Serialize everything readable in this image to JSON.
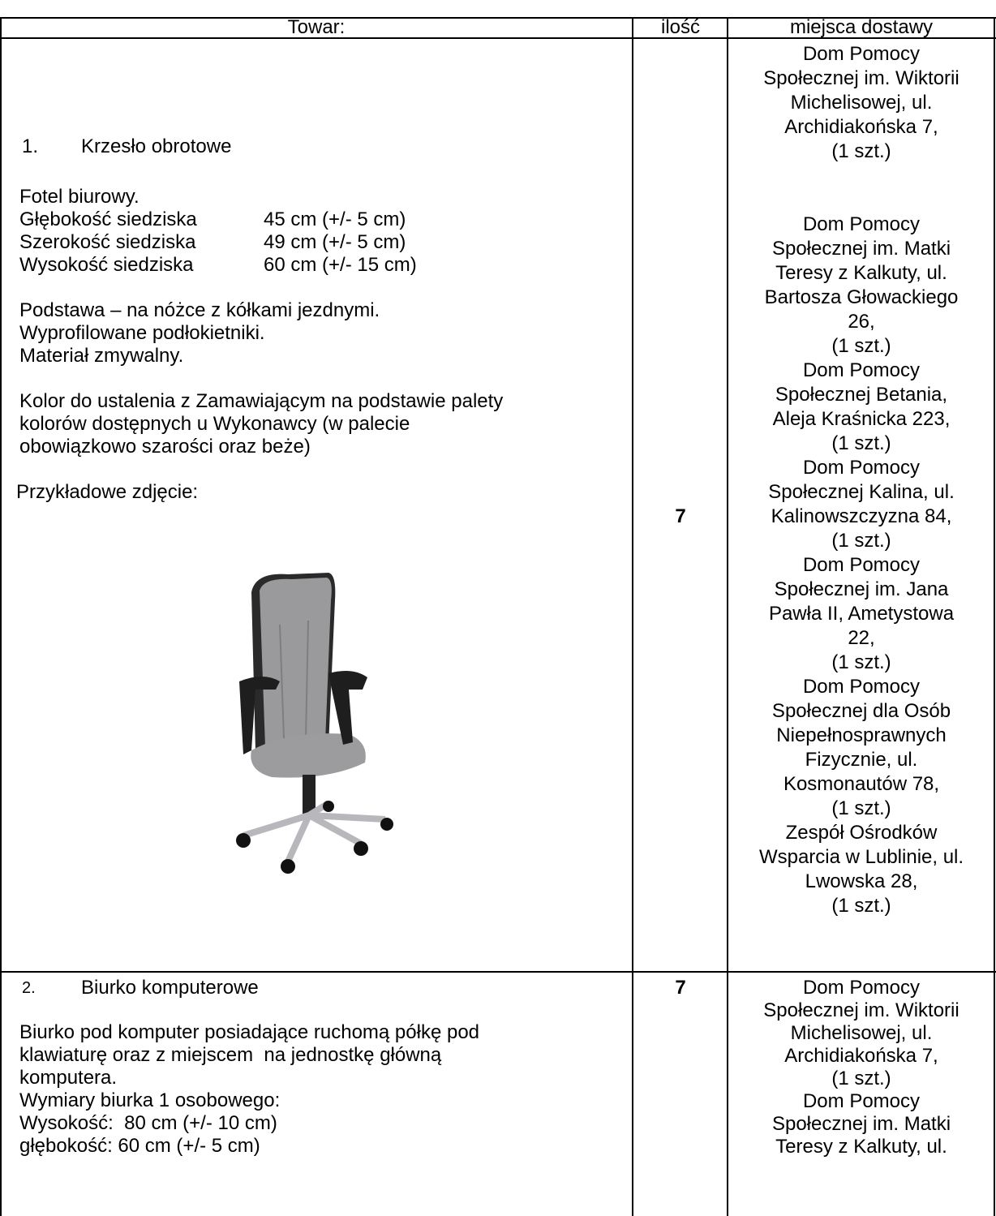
{
  "header": {
    "item": "Towar:",
    "quantity": "ilość",
    "delivery": "miejsca dostawy"
  },
  "rows": [
    {
      "number": "1.",
      "name": "Krzesło obrotowe",
      "intro": "Fotel biurowy.",
      "specs": [
        [
          "Głębokość siedziska",
          "45 cm (+/- 5 cm)"
        ],
        [
          "Szerokość siedziska",
          "49 cm (+/- 5 cm)"
        ],
        [
          "Wysokość siedziska",
          "60 cm (+/- 15 cm)"
        ]
      ],
      "features": [
        "Podstawa – na nóżce z kółkami jezdnymi.",
        "Wyprofilowane podłokietniki.",
        "Materiał zmywalny."
      ],
      "color_note": [
        "Kolor do ustalenia z Zamawiającym na podstawie palety",
        "kolorów dostępnych u Wykonawcy (w palecie",
        "obowiązkowo szarości oraz beże)"
      ],
      "photo_caption": "Przykładowe zdjęcie:",
      "quantity": 7,
      "delivery": [
        [
          "Dom Pomocy",
          "Społecznej im. Wiktorii",
          "Michelisowej, ul.",
          "Archidiakońska 7,",
          "(1 szt.)"
        ],
        [
          "Dom Pomocy",
          "Społecznej im. Matki",
          "Teresy z Kalkuty, ul.",
          "Bartosza Głowackiego",
          "26,",
          "(1 szt.)"
        ],
        [
          "Dom Pomocy",
          "Społecznej Betania,",
          "Aleja Kraśnicka 223,",
          "(1 szt.)"
        ],
        [
          "Dom Pomocy",
          "Społecznej Kalina, ul.",
          "Kalinowszczyzna 84,",
          "(1 szt.)"
        ],
        [
          "Dom Pomocy",
          "Społecznej im. Jana",
          "Pawła II, Ametystowa",
          "22,",
          "(1 szt.)"
        ],
        [
          "Dom Pomocy",
          "Społecznej dla Osób",
          "Niepełnosprawnych",
          "Fizycznie, ul.",
          "Kosmonautów 78,",
          "(1 szt.)"
        ],
        [
          "Zespół Ośrodków",
          "Wsparcia w Lublinie, ul.",
          "Lwowska 28,",
          "(1 szt.)"
        ]
      ]
    },
    {
      "number": "2.",
      "name": "Biurko komputerowe",
      "description": [
        "Biurko pod komputer posiadające ruchomą półkę pod",
        "klawiaturę oraz z miejscem  na jednostkę główną",
        "komputera.",
        "Wymiary biurka 1 osobowego:",
        "Wysokość:  80 cm (+/- 10 cm)",
        "głębokość: 60 cm (+/- 5 cm)"
      ],
      "quantity": 7,
      "delivery": [
        [
          "Dom Pomocy",
          "Społecznej im. Wiktorii",
          "Michelisowej, ul.",
          "Archidiakońska 7,",
          "(1 szt.)"
        ],
        [
          "Dom Pomocy",
          "Społecznej im. Matki",
          "Teresy z Kalkuty, ul."
        ]
      ]
    }
  ]
}
